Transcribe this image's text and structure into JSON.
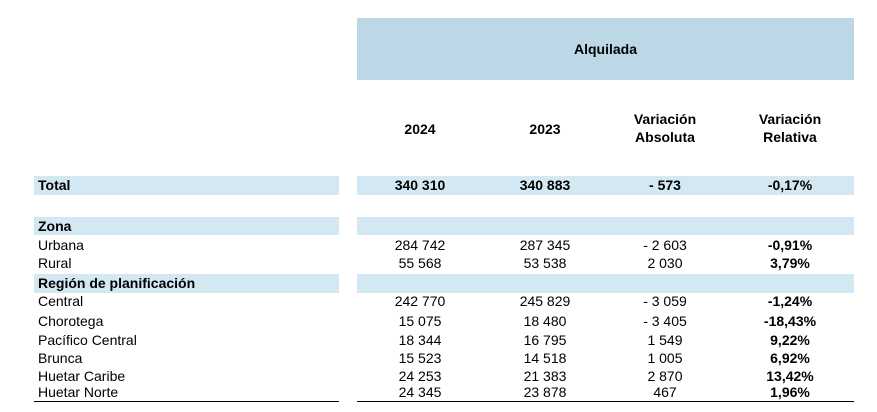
{
  "header": {
    "group": "Alquilada",
    "columns": [
      "2024",
      "2023",
      "Variación Absoluta",
      "Variación Relativa"
    ],
    "col_lines": [
      [
        "2024"
      ],
      [
        "2023"
      ],
      [
        "Variación",
        "Absoluta"
      ],
      [
        "Variación",
        "Relativa"
      ]
    ]
  },
  "total": {
    "label": "Total",
    "values": [
      "340 310",
      "340 883",
      "- 573",
      "-0,17%"
    ]
  },
  "zona": {
    "heading": "Zona",
    "rows": [
      {
        "label": "Urbana",
        "values": [
          "284 742",
          "287 345",
          "- 2 603",
          "-0,91%"
        ]
      },
      {
        "label": "Rural",
        "values": [
          "55 568",
          "53 538",
          "2 030",
          "3,79%"
        ]
      }
    ]
  },
  "region": {
    "heading": "Región de planificación",
    "rows": [
      {
        "label": "Central",
        "values": [
          "242 770",
          "245 829",
          "- 3 059",
          "-1,24%"
        ]
      },
      {
        "label": "Chorotega",
        "values": [
          "15 075",
          "18 480",
          "- 3 405",
          "-18,43%"
        ]
      },
      {
        "label": "Pacífico Central",
        "values": [
          "18 344",
          "16 795",
          "1 549",
          "9,22%"
        ]
      },
      {
        "label": "Brunca",
        "values": [
          "15 523",
          "14 518",
          "1 005",
          "6,92%"
        ]
      },
      {
        "label": "Huetar Caribe",
        "values": [
          "24 253",
          "21 383",
          "2 870",
          "13,42%"
        ]
      },
      {
        "label": "Huetar Norte",
        "values": [
          "24 345",
          "23 878",
          "467",
          "1,96%"
        ]
      }
    ]
  }
}
